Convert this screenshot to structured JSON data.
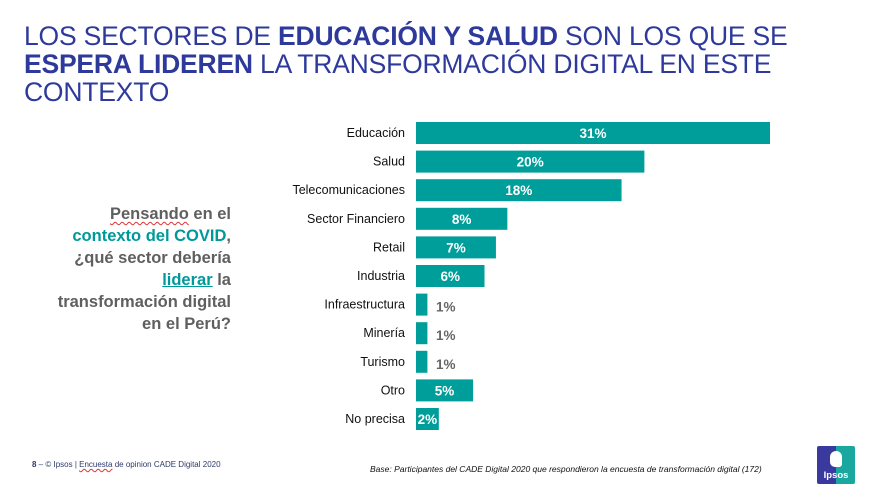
{
  "title": {
    "part1": "LOS SECTORES DE ",
    "bold1": "EDUCACIÓN Y SALUD",
    "part2": " SON LOS QUE SE ",
    "bold2": "ESPERA LIDEREN",
    "part3": " LA TRANSFORMACIÓN DIGITAL EN ESTE CONTEXTO"
  },
  "question": {
    "w1": "Pensando",
    "w2": " en el ",
    "teal1": "contexto del COVID",
    "w3": ", ¿qué sector debería ",
    "teal2": "liderar",
    "w4": " la transformación digital en el Perú?"
  },
  "colors": {
    "bar": "#009e9a",
    "title": "#2e3a9b",
    "accent": "#00999a"
  },
  "chart_data": {
    "type": "bar",
    "orientation": "horizontal",
    "title": "",
    "xlabel": "",
    "ylabel": "",
    "categories": [
      "Educación",
      "Salud",
      "Telecomunicaciones",
      "Sector Financiero",
      "Retail",
      "Industria",
      "Infraestructura",
      "Minería",
      "Turismo",
      "Otro",
      "No precisa"
    ],
    "values": [
      31,
      20,
      18,
      8,
      7,
      6,
      1,
      1,
      1,
      5,
      2
    ],
    "value_labels": [
      "31%",
      "20%",
      "18%",
      "8%",
      "7%",
      "6%",
      "1%",
      "1%",
      "1%",
      "5%",
      "2%"
    ],
    "unit": "%",
    "xlim": [
      0,
      31
    ],
    "grid": false,
    "legend": "none"
  },
  "footer": {
    "page": "8",
    "dash": " – ",
    "copyright": "© Ipsos | ",
    "survey_word": "Encuesta",
    "survey_rest": " de opinion CADE Digital 2020",
    "base": "Base: Participantes del CADE Digital 2020 que respondieron la encuesta de transformación digital (172)"
  },
  "logo": {
    "text": "Ipsos"
  }
}
